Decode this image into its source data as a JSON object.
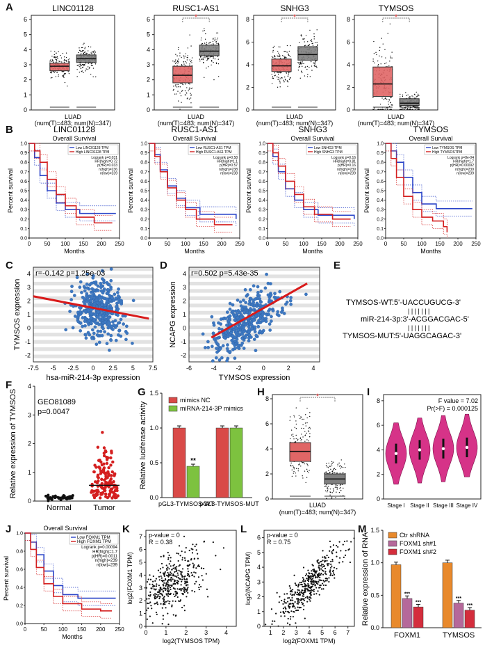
{
  "panels": {
    "A": {
      "label": "A",
      "plots": [
        {
          "title": "LINC01128",
          "ymax": 6,
          "ticks": [
            "0",
            "1",
            "2",
            "3",
            "4",
            "5",
            "6"
          ],
          "tumor_median": 2.9,
          "normal_median": 3.4,
          "tumor_q": [
            2.6,
            3.1
          ],
          "normal_q": [
            3.15,
            3.65
          ],
          "sig": false
        },
        {
          "title": "RUSC1-AS1",
          "ymax": 6,
          "ticks": [
            "0",
            "1",
            "2",
            "3",
            "4",
            "5",
            "6"
          ],
          "tumor_median": 2.3,
          "normal_median": 3.9,
          "tumor_q": [
            1.8,
            2.9
          ],
          "normal_q": [
            3.6,
            4.3
          ],
          "sig": true
        },
        {
          "title": "SNHG3",
          "ymax": 8,
          "ticks": [
            "0",
            "2",
            "4",
            "6",
            "8"
          ],
          "tumor_median": 3.9,
          "normal_median": 4.9,
          "tumor_q": [
            3.4,
            4.5
          ],
          "normal_q": [
            4.4,
            5.6
          ],
          "sig": true
        },
        {
          "title": "TYMSOS",
          "ymax": 8,
          "ticks": [
            "0",
            "2",
            "4",
            "6",
            "8"
          ],
          "tumor_median": 2.3,
          "normal_median": 0.6,
          "tumor_q": [
            1.2,
            3.8
          ],
          "normal_q": [
            0.4,
            1.0
          ],
          "sig": true
        }
      ],
      "xlabel": "LUAD",
      "nlabel": "(num(T)=483; num(N)=347)",
      "star": "*"
    },
    "B": {
      "label": "B",
      "subtitle": "Overall Survival",
      "ylabel": "Percent survival",
      "xlabel": "Months",
      "yticks": [
        "0.0",
        "0.1",
        "0.2",
        "0.3",
        "0.4",
        "0.5",
        "0.6",
        "0.7",
        "0.8",
        "0.9",
        "1.0"
      ],
      "xticks": [
        "0",
        "50",
        "100",
        "150",
        "200",
        "250"
      ],
      "plots": [
        {
          "title": "LINC01128",
          "legend_low": "Low LINC01128 TPM",
          "legend_high": "High LINC01128 TPM",
          "stats": [
            "Logrank p=0.031",
            "HR(high)=0.72",
            "p(HR)=0.033",
            "n(high)=236",
            "n(low)=239"
          ],
          "low_curve": [
            [
              0,
              1.0
            ],
            [
              15,
              0.85
            ],
            [
              30,
              0.66
            ],
            [
              50,
              0.5
            ],
            [
              75,
              0.37
            ],
            [
              100,
              0.3
            ],
            [
              140,
              0.26
            ],
            [
              240,
              0.26
            ]
          ],
          "high_curve": [
            [
              0,
              1.0
            ],
            [
              15,
              0.92
            ],
            [
              30,
              0.8
            ],
            [
              50,
              0.62
            ],
            [
              75,
              0.46
            ],
            [
              100,
              0.34
            ],
            [
              130,
              0.22
            ],
            [
              180,
              0.16
            ],
            [
              230,
              0.16
            ]
          ]
        },
        {
          "title": "RUSC1-AS1",
          "legend_low": "Low RUSC1-AS1 TPM",
          "legend_high": "High RUSC1-AS1 TPM",
          "stats": [
            "Logrank p=0.58",
            "HR(high)=1.1",
            "p(HR)=0.57",
            "n(high)=238",
            "n(low)=238"
          ],
          "low_curve": [
            [
              0,
              1.0
            ],
            [
              15,
              0.88
            ],
            [
              30,
              0.72
            ],
            [
              50,
              0.55
            ],
            [
              75,
              0.42
            ],
            [
              100,
              0.32
            ],
            [
              140,
              0.25
            ],
            [
              240,
              0.2
            ]
          ],
          "high_curve": [
            [
              0,
              1.0
            ],
            [
              15,
              0.86
            ],
            [
              30,
              0.7
            ],
            [
              50,
              0.53
            ],
            [
              75,
              0.4
            ],
            [
              100,
              0.3
            ],
            [
              130,
              0.2
            ],
            [
              180,
              0.14
            ],
            [
              230,
              0.14
            ]
          ]
        },
        {
          "title": "SNHG3",
          "legend_low": "Low SNHG3 TPM",
          "legend_high": "High SNHG3 TPM",
          "stats": [
            "Logrank p=0.16",
            "HR(high)=0.81",
            "p(HR)=0.16",
            "n(high)=239",
            "n(low)=239"
          ],
          "low_curve": [
            [
              0,
              1.0
            ],
            [
              15,
              0.86
            ],
            [
              30,
              0.7
            ],
            [
              50,
              0.52
            ],
            [
              75,
              0.4
            ],
            [
              100,
              0.3
            ],
            [
              140,
              0.24
            ],
            [
              240,
              0.2
            ]
          ],
          "high_curve": [
            [
              0,
              1.0
            ],
            [
              15,
              0.9
            ],
            [
              30,
              0.76
            ],
            [
              50,
              0.6
            ],
            [
              75,
              0.46
            ],
            [
              100,
              0.33
            ],
            [
              130,
              0.25
            ],
            [
              180,
              0.2
            ],
            [
              230,
              0.2
            ]
          ]
        },
        {
          "title": "TYMSOS",
          "legend_low": "Low TYMSOS TPM",
          "legend_high": "High TYMSOSTPM",
          "stats": [
            "Logrank p=8e-04",
            "HR(high)=1.7",
            "p(HR)=0.00092",
            "n(high)=239",
            "n(low)=239"
          ],
          "low_curve": [
            [
              0,
              1.0
            ],
            [
              15,
              0.92
            ],
            [
              30,
              0.8
            ],
            [
              50,
              0.64
            ],
            [
              75,
              0.48
            ],
            [
              100,
              0.36
            ],
            [
              140,
              0.31
            ],
            [
              240,
              0.31
            ]
          ],
          "high_curve": [
            [
              0,
              1.0
            ],
            [
              15,
              0.84
            ],
            [
              30,
              0.64
            ],
            [
              50,
              0.44
            ],
            [
              75,
              0.3
            ],
            [
              100,
              0.22
            ],
            [
              130,
              0.18
            ],
            [
              160,
              0.12
            ],
            [
              170,
              0.06
            ]
          ]
        }
      ]
    },
    "C": {
      "label": "C",
      "stat": "r=-0.142 p=1.25e-03",
      "ylabel": "TYMSOS expression",
      "xlabel": "hsa-miR-214-3p expression",
      "xticks": [
        "-7.5",
        "-5",
        "-2.5",
        "0",
        "2.5",
        "5",
        "7.5"
      ],
      "yticks": [
        "-2",
        "-1",
        "0",
        "1",
        "2",
        "3",
        "4"
      ],
      "xlim": [
        -7.5,
        7.5
      ],
      "ylim": [
        -2.5,
        4.5
      ],
      "fit": [
        [
          -7.5,
          2.35
        ],
        [
          7.0,
          0.7
        ]
      ]
    },
    "D": {
      "label": "D",
      "stat": "r=0.502 p=5.43e-35",
      "ylabel": "NCAPG expression",
      "xlabel": "TYMSOS expression",
      "xticks": [
        "-6",
        "-4",
        "-2",
        "0",
        "2",
        "4"
      ],
      "yticks": [
        "-2",
        "-1",
        "0",
        "1",
        "2",
        "3",
        "4"
      ],
      "xlim": [
        -6,
        4.5
      ],
      "ylim": [
        -2.5,
        4.5
      ],
      "fit": [
        [
          -4.2,
          -0.7
        ],
        [
          3.5,
          3.3
        ]
      ]
    },
    "E": {
      "label": "E",
      "wt": "TYMSOS-WT:5'-UACCUGUCG-3'",
      "mir": "miR-214-3p:3'-ACGGACGAC-5'",
      "mut": "TYMSOS-MUT:5'-UAGGCAGAC-3'",
      "bars": "| | | | | | |"
    },
    "F": {
      "label": "F",
      "dataset": "GEO81089",
      "pval": "p=0.0047",
      "ylabel": "Relative expression of TYMSOS",
      "yticks": [
        "0",
        "1",
        "2",
        "3",
        "4"
      ],
      "groups": [
        "Normal",
        "Tumor"
      ]
    },
    "G": {
      "label": "G",
      "ylabel": "Relative luciferase activity",
      "yticks": [
        "0.0",
        "0.5",
        "1.0",
        "1.5"
      ],
      "legend": [
        "mimics NC",
        "miRNA-214-3P mimics"
      ],
      "colors": [
        "#d94a48",
        "#7dc23f"
      ],
      "categories": [
        "pGL3-TYMSOS-WT",
        "pGL3-TYMSOS-MUT"
      ],
      "values": [
        [
          1.0,
          0.45
        ],
        [
          1.0,
          1.0
        ]
      ],
      "sig": "**"
    },
    "H": {
      "label": "H",
      "ticks": [
        "0",
        "2",
        "4",
        "6",
        "8"
      ],
      "tumor_median": 3.8,
      "normal_median": 1.6,
      "tumor_q": [
        3.0,
        4.5
      ],
      "normal_q": [
        1.2,
        2.0
      ],
      "xlabel": "LUAD",
      "nlabel": "(num(T)=483; num(N)=347)",
      "star": "*"
    },
    "I": {
      "label": "I",
      "fvalue": "F value = 7.02",
      "pr": "Pr(>F) = 0.000125",
      "yticks": [
        "0",
        "2",
        "4",
        "6",
        "8"
      ],
      "stages": [
        "Stage I",
        "Stage II",
        "Stage III",
        "Stage IV"
      ],
      "color": "#d63388"
    },
    "J": {
      "label": "J",
      "title": "Overall Survival",
      "ylabel": "Percent survival",
      "xlabel": "Months",
      "legend_low": "Low FOXM1 TPM",
      "legend_high": "High FOXM1 TPM",
      "stats": [
        "Logrank p=0.00094",
        "HR(high)=1.7",
        "p(HR)=0.0011",
        "n(high)=239",
        "n(low)=239"
      ],
      "yticks": [
        "0.0",
        "0.2",
        "0.4",
        "0.6",
        "0.8",
        "1.0"
      ],
      "xticks": [
        "0",
        "50",
        "100",
        "150",
        "200",
        "250"
      ],
      "low_curve": [
        [
          0,
          1.0
        ],
        [
          15,
          0.9
        ],
        [
          30,
          0.76
        ],
        [
          50,
          0.58
        ],
        [
          75,
          0.42
        ],
        [
          100,
          0.32
        ],
        [
          140,
          0.28
        ],
        [
          240,
          0.28
        ]
      ],
      "high_curve": [
        [
          0,
          1.0
        ],
        [
          15,
          0.82
        ],
        [
          30,
          0.62
        ],
        [
          50,
          0.44
        ],
        [
          75,
          0.3
        ],
        [
          100,
          0.22
        ],
        [
          150,
          0.16
        ],
        [
          200,
          0.14
        ],
        [
          230,
          0.14
        ]
      ]
    },
    "K": {
      "label": "K",
      "stat1": "p-value = 0",
      "stat2": "R = 0.38",
      "ylabel": "log2(FOXM1 TPM)",
      "xlabel": "log2(TYMSOS TPM)",
      "xticks": [
        "0",
        "1",
        "2",
        "3",
        "4"
      ],
      "yticks": [
        "0",
        "1",
        "2",
        "3",
        "4",
        "5",
        "6",
        "7"
      ],
      "xlim": [
        0,
        4.5
      ],
      "ylim": [
        0,
        7.5
      ]
    },
    "L": {
      "label": "L",
      "stat1": "p-value = 0",
      "stat2": "R = 0.75",
      "ylabel": "log2(NCAPG TPM)",
      "xlabel": "log2(FOXM1 TPM)",
      "xticks": [
        "1",
        "2",
        "3",
        "4",
        "5",
        "6",
        "7"
      ],
      "yticks": [
        "0",
        "1",
        "2",
        "3",
        "4",
        "5",
        "6"
      ],
      "xlim": [
        0.5,
        7.5
      ],
      "ylim": [
        0,
        6.5
      ]
    },
    "M": {
      "label": "M",
      "ylabel": "Relative expression of RNA",
      "yticks": [
        "0.0",
        "0.5",
        "1.0",
        "1.5"
      ],
      "legend": [
        "Ctr shRNA",
        "FOXM1 sh#1",
        "FOXM1 sh#2"
      ],
      "colors": [
        "#e8892c",
        "#b5689a",
        "#d42d3c"
      ],
      "categories": [
        "FOXM1",
        "TYMSOS"
      ],
      "values": [
        [
          0.97,
          0.45,
          0.32
        ],
        [
          1.0,
          0.38,
          0.27
        ]
      ],
      "sig": "***"
    }
  }
}
